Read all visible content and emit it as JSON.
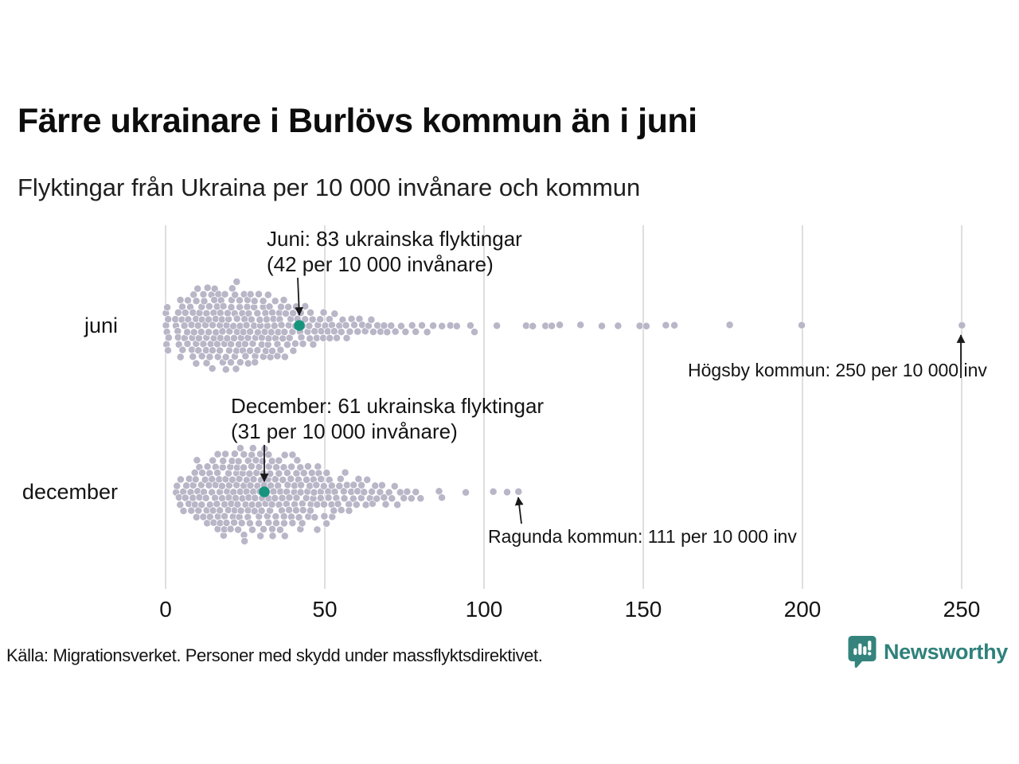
{
  "title": "Färre ukrainare i Burlövs kommun än i juni",
  "subtitle": "Flyktingar från Ukraina per 10 000 invånare och kommun",
  "source": "Källa: Migrationsverket. Personer med skydd under massflyktsdirektivet.",
  "brand": {
    "name": "Newsworthy",
    "color": "#2f817b",
    "icon": "bar-chart-speech-bubble-icon"
  },
  "colors": {
    "dot": "#b8b6c7",
    "accent": "#17947e",
    "gridline": "#d6d6d6",
    "arrow": "#1a1a1a",
    "text": "#141414"
  },
  "chart_data": {
    "type": "beeswarm",
    "title": "Flyktingar från Ukraina per 10 000 invånare och kommun",
    "xlabel": "",
    "ylabel": "",
    "xlim": [
      0,
      260
    ],
    "x_ticks": [
      0,
      50,
      100,
      150,
      200,
      250
    ],
    "grid": "vertical",
    "unit": "per 10 000 invånare",
    "rows": [
      {
        "label": "juni",
        "highlight": {
          "value": 42,
          "annotation_line1": "Juni: 83 ukrainska flyktingar",
          "annotation_line2": "(42 per 10 000 invånare)"
        },
        "outlier": {
          "value": 250,
          "annotation": "Högsby kommun: 250 per 10 000 inv"
        },
        "density_bins": [
          {
            "from": 0,
            "to": 1,
            "count": 8
          },
          {
            "from": 3,
            "to": 8,
            "count": 20
          },
          {
            "from": 8,
            "to": 13,
            "count": 26
          },
          {
            "from": 13,
            "to": 18,
            "count": 28
          },
          {
            "from": 18,
            "to": 23,
            "count": 28
          },
          {
            "from": 23,
            "to": 28,
            "count": 26
          },
          {
            "from": 28,
            "to": 33,
            "count": 24
          },
          {
            "from": 33,
            "to": 38,
            "count": 20
          },
          {
            "from": 38,
            "to": 43,
            "count": 16
          },
          {
            "from": 43,
            "to": 48,
            "count": 12
          },
          {
            "from": 48,
            "to": 53,
            "count": 10
          },
          {
            "from": 53,
            "to": 58,
            "count": 8
          },
          {
            "from": 58,
            "to": 63,
            "count": 6
          },
          {
            "from": 63,
            "to": 68,
            "count": 5
          },
          {
            "from": 68,
            "to": 73,
            "count": 4
          },
          {
            "from": 73,
            "to": 78,
            "count": 3
          },
          {
            "from": 78,
            "to": 83,
            "count": 3
          },
          {
            "from": 83,
            "to": 88,
            "count": 2
          },
          {
            "from": 88,
            "to": 93,
            "count": 2
          }
        ],
        "tail_values": [
          96,
          97,
          104,
          113,
          115,
          119,
          121,
          124,
          130,
          137,
          142,
          149,
          151,
          157,
          160,
          177,
          200
        ]
      },
      {
        "label": "december",
        "highlight": {
          "value": 31,
          "annotation_line1": "December: 61 ukrainska flyktingar",
          "annotation_line2": "(31 per 10 000 invånare)"
        },
        "outlier": {
          "value": 111,
          "annotation": "Ragunda kommun: 111 per 10 000 inv"
        },
        "density_bins": [
          {
            "from": 3,
            "to": 8,
            "count": 12
          },
          {
            "from": 8,
            "to": 13,
            "count": 20
          },
          {
            "from": 13,
            "to": 18,
            "count": 26
          },
          {
            "from": 18,
            "to": 23,
            "count": 30
          },
          {
            "from": 23,
            "to": 28,
            "count": 30
          },
          {
            "from": 28,
            "to": 33,
            "count": 30
          },
          {
            "from": 33,
            "to": 38,
            "count": 26
          },
          {
            "from": 38,
            "to": 43,
            "count": 24
          },
          {
            "from": 43,
            "to": 48,
            "count": 20
          },
          {
            "from": 48,
            "to": 53,
            "count": 16
          },
          {
            "from": 53,
            "to": 58,
            "count": 12
          },
          {
            "from": 58,
            "to": 63,
            "count": 10
          },
          {
            "from": 63,
            "to": 68,
            "count": 8
          },
          {
            "from": 68,
            "to": 73,
            "count": 6
          },
          {
            "from": 73,
            "to": 78,
            "count": 4
          },
          {
            "from": 78,
            "to": 81,
            "count": 2
          }
        ],
        "tail_values": [
          86,
          87,
          94,
          103,
          107
        ]
      }
    ]
  }
}
